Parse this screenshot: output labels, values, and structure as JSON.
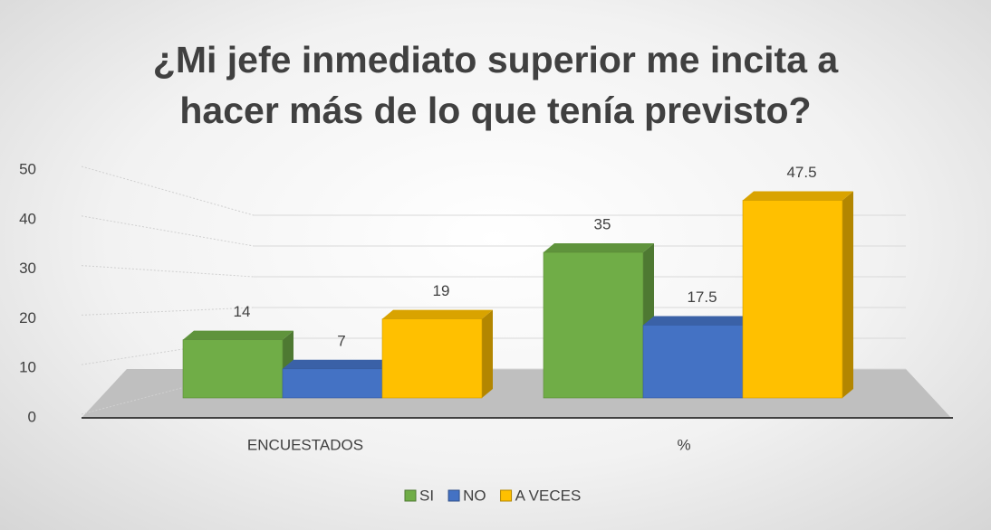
{
  "chart_data": {
    "type": "bar3d",
    "title": "¿Mi jefe inmediato superior me incita a hacer más de lo que tenía previsto?",
    "categories": [
      "ENCUESTADOS",
      "%"
    ],
    "series": [
      {
        "name": "SI",
        "color": "#70ad47",
        "values": [
          14,
          35
        ]
      },
      {
        "name": "NO",
        "color": "#4472c4",
        "values": [
          7,
          17.5
        ]
      },
      {
        "name": "A VECES",
        "color": "#ffc000",
        "values": [
          19,
          47.5
        ]
      }
    ],
    "ylim": [
      0,
      50
    ],
    "yticks": [
      0,
      10,
      20,
      30,
      40,
      50
    ],
    "grid": true,
    "legend": "bottom"
  }
}
